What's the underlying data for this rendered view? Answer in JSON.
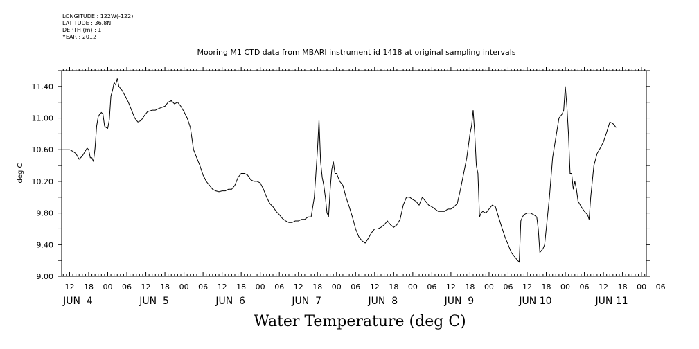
{
  "meta": {
    "lines": [
      "LONGITUDE : 122W(-122)",
      "LATITUDE : 36.8N",
      "DEPTH (m) : 1",
      "YEAR : 2012"
    ]
  },
  "chart_data": {
    "type": "line",
    "title": "Mooring M1 CTD data from MBARI instrument id 1418 at original sampling intervals",
    "xlabel": "Water Temperature (deg C)",
    "ylabel": "deg C",
    "ylim": [
      9.0,
      11.6
    ],
    "yticks": [
      "9.00",
      "9.40",
      "9.80",
      "10.20",
      "10.60",
      "11.00",
      "11.40"
    ],
    "xlim_hours_from_jun4_00": [
      -14.5,
      169.5
    ],
    "hour_ticks": [
      "12",
      "18",
      "00",
      "06",
      "12",
      "18",
      "00",
      "06",
      "12",
      "18",
      "00",
      "06",
      "12",
      "18",
      "00",
      "06",
      "12",
      "18",
      "00",
      "06",
      "12",
      "18",
      "00",
      "06",
      "12",
      "18",
      "00",
      "06",
      "12",
      "18",
      "00",
      "06"
    ],
    "day_labels": [
      "JUN  4",
      "JUN  5",
      "JUN  6",
      "JUN  7",
      "JUN  8",
      "JUN  9",
      "JUN 10",
      "JUN 11"
    ],
    "grid": false,
    "series": [
      {
        "values": [
          [
            -14.5,
            10.6
          ],
          [
            -12,
            10.6
          ],
          [
            -11,
            10.58
          ],
          [
            -10,
            10.55
          ],
          [
            -9,
            10.48
          ],
          [
            -8,
            10.52
          ],
          [
            -6.5,
            10.62
          ],
          [
            -6,
            10.6
          ],
          [
            -5.5,
            10.5
          ],
          [
            -5,
            10.5
          ],
          [
            -4.5,
            10.45
          ],
          [
            -4,
            10.62
          ],
          [
            -3.5,
            10.9
          ],
          [
            -3,
            11.02
          ],
          [
            -2.5,
            11.05
          ],
          [
            -2,
            11.07
          ],
          [
            -1.5,
            11.05
          ],
          [
            -1,
            10.9
          ],
          [
            -0.5,
            10.88
          ],
          [
            0,
            10.87
          ],
          [
            0.5,
            10.98
          ],
          [
            1,
            11.28
          ],
          [
            1.5,
            11.35
          ],
          [
            2,
            11.45
          ],
          [
            2.5,
            11.42
          ],
          [
            3,
            11.5
          ],
          [
            3.5,
            11.4
          ],
          [
            4.5,
            11.35
          ],
          [
            5.5,
            11.28
          ],
          [
            6.5,
            11.2
          ],
          [
            7.5,
            11.1
          ],
          [
            8.5,
            11.0
          ],
          [
            9.5,
            10.95
          ],
          [
            10.5,
            10.97
          ],
          [
            11.5,
            11.03
          ],
          [
            12.5,
            11.08
          ],
          [
            14,
            11.1
          ],
          [
            15,
            11.1
          ],
          [
            16,
            11.12
          ],
          [
            18,
            11.15
          ],
          [
            19,
            11.2
          ],
          [
            20,
            11.22
          ],
          [
            21,
            11.18
          ],
          [
            22,
            11.2
          ],
          [
            23,
            11.15
          ],
          [
            24,
            11.08
          ],
          [
            25,
            11.0
          ],
          [
            26,
            10.88
          ],
          [
            27,
            10.6
          ],
          [
            28,
            10.5
          ],
          [
            29,
            10.4
          ],
          [
            30,
            10.28
          ],
          [
            31,
            10.2
          ],
          [
            32,
            10.15
          ],
          [
            33,
            10.1
          ],
          [
            34,
            10.08
          ],
          [
            35,
            10.07
          ],
          [
            36,
            10.08
          ],
          [
            37,
            10.08
          ],
          [
            38,
            10.1
          ],
          [
            39,
            10.1
          ],
          [
            40,
            10.15
          ],
          [
            41,
            10.25
          ],
          [
            42,
            10.3
          ],
          [
            43,
            10.3
          ],
          [
            44,
            10.28
          ],
          [
            45,
            10.22
          ],
          [
            46,
            10.2
          ],
          [
            47,
            10.2
          ],
          [
            48,
            10.18
          ],
          [
            49,
            10.1
          ],
          [
            50,
            10.0
          ],
          [
            51,
            9.92
          ],
          [
            52,
            9.88
          ],
          [
            53,
            9.82
          ],
          [
            54,
            9.78
          ],
          [
            55,
            9.73
          ],
          [
            56,
            9.7
          ],
          [
            57,
            9.68
          ],
          [
            58,
            9.68
          ],
          [
            59,
            9.7
          ],
          [
            60,
            9.7
          ],
          [
            61,
            9.72
          ],
          [
            62,
            9.72
          ],
          [
            63,
            9.75
          ],
          [
            64,
            9.75
          ],
          [
            65,
            10.0
          ],
          [
            65.5,
            10.3
          ],
          [
            66,
            10.6
          ],
          [
            66.5,
            10.98
          ],
          [
            67,
            10.45
          ],
          [
            67.5,
            10.25
          ],
          [
            68,
            10.15
          ],
          [
            68.5,
            10.0
          ],
          [
            69,
            9.8
          ],
          [
            69.5,
            9.76
          ],
          [
            70,
            10.1
          ],
          [
            70.5,
            10.35
          ],
          [
            71,
            10.45
          ],
          [
            71.5,
            10.3
          ],
          [
            72,
            10.3
          ],
          [
            72.5,
            10.25
          ],
          [
            73,
            10.2
          ],
          [
            74,
            10.15
          ],
          [
            75,
            10.0
          ],
          [
            76,
            9.88
          ],
          [
            77,
            9.75
          ],
          [
            78,
            9.6
          ],
          [
            79,
            9.5
          ],
          [
            80,
            9.45
          ],
          [
            81,
            9.42
          ],
          [
            82,
            9.48
          ],
          [
            83,
            9.55
          ],
          [
            84,
            9.6
          ],
          [
            85,
            9.6
          ],
          [
            86,
            9.62
          ],
          [
            87,
            9.65
          ],
          [
            88,
            9.7
          ],
          [
            89,
            9.65
          ],
          [
            90,
            9.62
          ],
          [
            91,
            9.65
          ],
          [
            92,
            9.72
          ],
          [
            93,
            9.9
          ],
          [
            94,
            10.0
          ],
          [
            95,
            10.0
          ],
          [
            96,
            9.97
          ],
          [
            97,
            9.95
          ],
          [
            98,
            9.9
          ],
          [
            99,
            10.0
          ],
          [
            100,
            9.95
          ],
          [
            101,
            9.9
          ],
          [
            102,
            9.88
          ],
          [
            103,
            9.85
          ],
          [
            104,
            9.82
          ],
          [
            105,
            9.82
          ],
          [
            106,
            9.82
          ],
          [
            107,
            9.85
          ],
          [
            108,
            9.85
          ],
          [
            109,
            9.88
          ],
          [
            110,
            9.92
          ],
          [
            111,
            10.1
          ],
          [
            112,
            10.3
          ],
          [
            113,
            10.5
          ],
          [
            114,
            10.8
          ],
          [
            114.5,
            10.9
          ],
          [
            115,
            11.1
          ],
          [
            115.5,
            10.8
          ],
          [
            116,
            10.4
          ],
          [
            116.5,
            10.3
          ],
          [
            117,
            9.75
          ],
          [
            117.5,
            9.8
          ],
          [
            118,
            9.82
          ],
          [
            119,
            9.8
          ],
          [
            120,
            9.85
          ],
          [
            121,
            9.9
          ],
          [
            122,
            9.88
          ],
          [
            123,
            9.75
          ],
          [
            124,
            9.62
          ],
          [
            125,
            9.5
          ],
          [
            126,
            9.4
          ],
          [
            127,
            9.3
          ],
          [
            128,
            9.25
          ],
          [
            129,
            9.2
          ],
          [
            129.5,
            9.18
          ],
          [
            130,
            9.7
          ],
          [
            130.5,
            9.75
          ],
          [
            131,
            9.78
          ],
          [
            132,
            9.8
          ],
          [
            133,
            9.8
          ],
          [
            134,
            9.78
          ],
          [
            135,
            9.75
          ],
          [
            135.5,
            9.6
          ],
          [
            136,
            9.3
          ],
          [
            137,
            9.35
          ],
          [
            137.5,
            9.4
          ],
          [
            138,
            9.6
          ],
          [
            139,
            10.0
          ],
          [
            140,
            10.5
          ],
          [
            141,
            10.75
          ],
          [
            142,
            11.0
          ],
          [
            143,
            11.05
          ],
          [
            143.5,
            11.1
          ],
          [
            144,
            11.4
          ],
          [
            144.5,
            11.15
          ],
          [
            145,
            10.8
          ],
          [
            145.5,
            10.3
          ],
          [
            146,
            10.3
          ],
          [
            146.5,
            10.1
          ],
          [
            147,
            10.2
          ],
          [
            147.5,
            10.1
          ],
          [
            148,
            9.95
          ],
          [
            149,
            9.88
          ],
          [
            150,
            9.82
          ],
          [
            151,
            9.78
          ],
          [
            151.5,
            9.72
          ],
          [
            152,
            10.0
          ],
          [
            153,
            10.4
          ],
          [
            154,
            10.55
          ],
          [
            155,
            10.62
          ],
          [
            156,
            10.7
          ],
          [
            157,
            10.82
          ],
          [
            158,
            10.95
          ],
          [
            159,
            10.93
          ],
          [
            160,
            10.88
          ]
        ]
      }
    ]
  }
}
